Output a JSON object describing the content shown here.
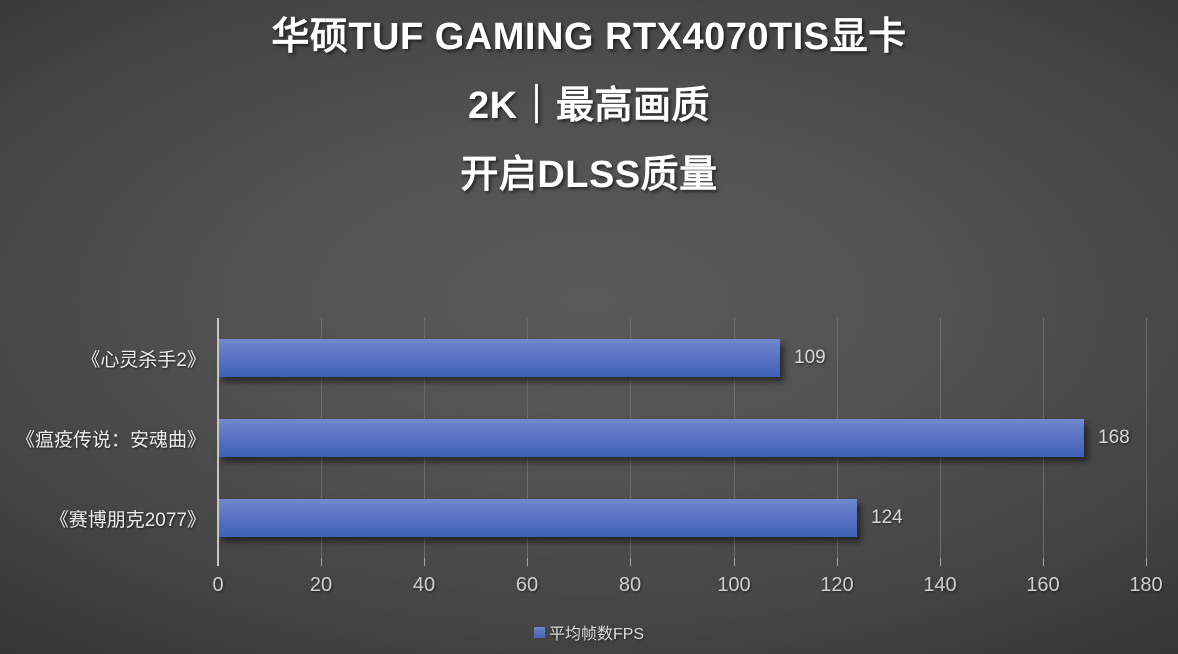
{
  "title": {
    "line1": "华硕TUF GAMING RTX4070TIS显卡",
    "line2": "2K｜最高画质",
    "line3": "开启DLSS质量"
  },
  "chart_data": {
    "type": "bar",
    "orientation": "horizontal",
    "title": "华硕TUF GAMING RTX4070TIS显卡 2K｜最高画质 开启DLSS质量",
    "categories": [
      "《心灵杀手2》",
      "《瘟疫传说：安魂曲》",
      "《赛博朋克2077》"
    ],
    "series": [
      {
        "name": "平均帧数FPS",
        "values": [
          109,
          168,
          124
        ]
      }
    ],
    "data_labels": [
      "109",
      "168",
      "124"
    ],
    "xlabel": "",
    "ylabel": "",
    "xlim": [
      0,
      180
    ],
    "x_ticks": [
      0,
      20,
      40,
      60,
      80,
      100,
      120,
      140,
      160,
      180
    ],
    "grid": true,
    "legend_position": "bottom"
  },
  "legend": {
    "label": "平均帧数FPS",
    "swatch_color": "#4f6dbf"
  },
  "colors": {
    "background_center": "#575757",
    "background_edge": "#2b2b2b",
    "gridline": "#6b6b6b",
    "axis_line": "#c6c6c6",
    "tick_label": "#d0d0d0",
    "value_label": "#d8d8d8",
    "category_label": "#ececec",
    "title_text": "#ffffff",
    "bar_gradient_top": "#7289ce",
    "bar_gradient_bottom": "#4061b6"
  }
}
